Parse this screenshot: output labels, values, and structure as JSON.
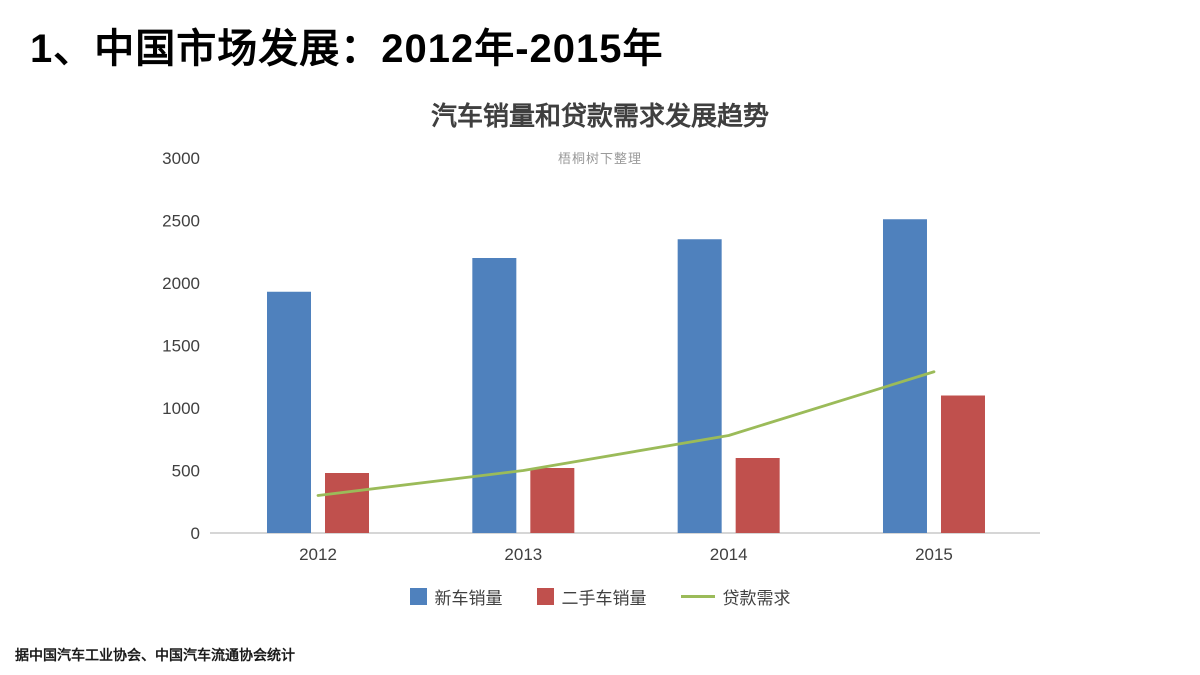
{
  "page": {
    "title": "1、中国市场发展：2012年-2015年",
    "footnote": "据中国汽车工业协会、中国汽车流通协会统计"
  },
  "chart_data": {
    "type": "bar",
    "title": "汽车销量和贷款需求发展趋势",
    "watermark": "梧桐树下整理",
    "categories": [
      "2012",
      "2013",
      "2014",
      "2015"
    ],
    "series": [
      {
        "name": "新车销量",
        "type": "bar",
        "color": "#4F81BD",
        "values": [
          1930,
          2200,
          2350,
          2510
        ]
      },
      {
        "name": "二手车销量",
        "type": "bar",
        "color": "#C0504D",
        "values": [
          480,
          520,
          600,
          1100
        ]
      },
      {
        "name": "贷款需求",
        "type": "line",
        "color": "#9BBB59",
        "values": [
          300,
          500,
          780,
          1290
        ]
      }
    ],
    "ylabel": "",
    "xlabel": "",
    "ylim": [
      0,
      3000
    ],
    "ytick_step": 500,
    "grid": false,
    "legend_position": "bottom",
    "axis_color": "#c8c8c8",
    "tick_label_color": "#404040"
  }
}
